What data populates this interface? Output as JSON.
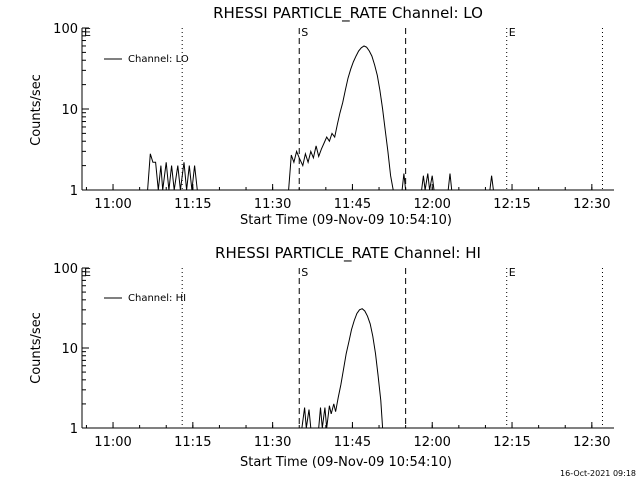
{
  "footer": {
    "timestamp": "16-Oct-2021 09:18"
  },
  "chart_data": [
    {
      "type": "line",
      "title": "RHESSI PARTICLE_RATE Channel: LO",
      "xlabel": "Start Time (09-Nov-09 10:54:10)",
      "ylabel": "Counts/sec",
      "y_scale": "log",
      "xlim": [
        "10:54:10",
        "12:34:10"
      ],
      "ylim": [
        1,
        100
      ],
      "x_ticks": [
        "11:00",
        "11:15",
        "11:30",
        "11:45",
        "12:00",
        "12:15",
        "12:30"
      ],
      "y_ticks": [
        "1",
        "10",
        "100"
      ],
      "legend": {
        "label": "Channel: LO",
        "placement": "top-left"
      },
      "markers": [
        {
          "time": "10:54:10",
          "label": "E",
          "style": "dotted"
        },
        {
          "time": "11:13:00",
          "label": "",
          "style": "dotted"
        },
        {
          "time": "11:35:00",
          "label": "S",
          "style": "dashed"
        },
        {
          "time": "11:55:00",
          "label": "",
          "style": "dashed"
        },
        {
          "time": "12:14:00",
          "label": "E",
          "style": "dotted"
        },
        {
          "time": "12:32:00",
          "label": "",
          "style": "dotted"
        }
      ],
      "series": [
        {
          "points": [
            [
              "11:06:30",
              1.0
            ],
            [
              "11:07:00",
              2.8
            ],
            [
              "11:07:30",
              2.2
            ],
            [
              "11:08:00",
              2.2
            ],
            [
              "11:08:30",
              1.0
            ],
            [
              "11:09:00",
              2.0
            ],
            [
              "11:09:20",
              1.0
            ],
            [
              "11:10:00",
              2.2
            ],
            [
              "11:10:30",
              1.0
            ],
            [
              "11:11:00",
              2.0
            ],
            [
              "11:11:30",
              1.0
            ],
            [
              "11:12:10",
              2.0
            ],
            [
              "11:12:40",
              1.0
            ],
            [
              "11:13:20",
              2.2
            ],
            [
              "11:13:50",
              1.0
            ],
            [
              "11:14:20",
              2.0
            ],
            [
              "11:14:50",
              1.0
            ],
            [
              "11:15:20",
              2.0
            ],
            [
              "11:15:50",
              1.0
            ],
            [
              "11:33:00",
              1.0
            ],
            [
              "11:33:30",
              2.7
            ],
            [
              "11:34:00",
              2.2
            ],
            [
              "11:34:30",
              3.0
            ],
            [
              "11:35:00",
              2.5
            ],
            [
              "11:35:40",
              2.0
            ],
            [
              "11:36:10",
              2.8
            ],
            [
              "11:36:40",
              2.2
            ],
            [
              "11:37:10",
              3.0
            ],
            [
              "11:37:40",
              2.5
            ],
            [
              "11:38:10",
              3.5
            ],
            [
              "11:38:40",
              2.6
            ],
            [
              "11:39:10",
              3.2
            ],
            [
              "11:39:40",
              3.8
            ],
            [
              "11:40:10",
              4.5
            ],
            [
              "11:40:40",
              4.0
            ],
            [
              "11:41:10",
              5.0
            ],
            [
              "11:41:40",
              4.5
            ],
            [
              "11:42:10",
              6.5
            ],
            [
              "11:42:40",
              9.0
            ],
            [
              "11:43:10",
              12.0
            ],
            [
              "11:43:40",
              17.0
            ],
            [
              "11:44:10",
              24.0
            ],
            [
              "11:44:40",
              31.0
            ],
            [
              "11:45:10",
              38.0
            ],
            [
              "11:45:40",
              45.0
            ],
            [
              "11:46:10",
              52.0
            ],
            [
              "11:46:40",
              57.0
            ],
            [
              "11:47:10",
              60.0
            ],
            [
              "11:47:40",
              58.0
            ],
            [
              "11:48:10",
              52.0
            ],
            [
              "11:48:40",
              45.0
            ],
            [
              "11:49:10",
              35.0
            ],
            [
              "11:49:40",
              26.0
            ],
            [
              "11:50:10",
              17.0
            ],
            [
              "11:50:40",
              10.0
            ],
            [
              "11:51:10",
              5.5
            ],
            [
              "11:51:40",
              3.0
            ],
            [
              "11:52:10",
              1.5
            ],
            [
              "11:52:40",
              1.0
            ],
            [
              "11:54:20",
              1.0
            ],
            [
              "11:54:40",
              1.6
            ],
            [
              "11:55:00",
              1.0
            ],
            [
              "11:58:00",
              1.0
            ],
            [
              "11:58:20",
              1.5
            ],
            [
              "11:58:40",
              1.0
            ],
            [
              "11:59:10",
              1.6
            ],
            [
              "11:59:30",
              1.0
            ],
            [
              "12:00:00",
              1.5
            ],
            [
              "12:00:20",
              1.0
            ],
            [
              "12:03:00",
              1.0
            ],
            [
              "12:03:20",
              1.6
            ],
            [
              "12:03:40",
              1.0
            ],
            [
              "12:10:50",
              1.0
            ],
            [
              "12:11:10",
              1.5
            ],
            [
              "12:11:30",
              1.0
            ]
          ]
        }
      ]
    },
    {
      "type": "line",
      "title": "RHESSI PARTICLE_RATE Channel: HI",
      "xlabel": "Start Time (09-Nov-09 10:54:10)",
      "ylabel": "Counts/sec",
      "y_scale": "log",
      "xlim": [
        "10:54:10",
        "12:34:10"
      ],
      "ylim": [
        1,
        100
      ],
      "x_ticks": [
        "11:00",
        "11:15",
        "11:30",
        "11:45",
        "12:00",
        "12:15",
        "12:30"
      ],
      "y_ticks": [
        "1",
        "10",
        "100"
      ],
      "legend": {
        "label": "Channel: HI",
        "placement": "top-left"
      },
      "markers": [
        {
          "time": "10:54:10",
          "label": "E",
          "style": "dotted"
        },
        {
          "time": "11:13:00",
          "label": "",
          "style": "dotted"
        },
        {
          "time": "11:35:00",
          "label": "S",
          "style": "dashed"
        },
        {
          "time": "11:55:00",
          "label": "",
          "style": "dashed"
        },
        {
          "time": "12:14:00",
          "label": "E",
          "style": "dotted"
        },
        {
          "time": "12:32:00",
          "label": "",
          "style": "dotted"
        }
      ],
      "series": [
        {
          "points": [
            [
              "11:35:30",
              1.0
            ],
            [
              "11:36:00",
              1.8
            ],
            [
              "11:36:20",
              1.0
            ],
            [
              "11:36:50",
              1.7
            ],
            [
              "11:37:10",
              1.0
            ],
            [
              "11:38:40",
              1.0
            ],
            [
              "11:39:00",
              1.8
            ],
            [
              "11:39:20",
              1.0
            ],
            [
              "11:39:50",
              1.8
            ],
            [
              "11:40:10",
              1.0
            ],
            [
              "11:40:40",
              1.9
            ],
            [
              "11:41:00",
              1.5
            ],
            [
              "11:41:30",
              2.0
            ],
            [
              "11:41:50",
              1.6
            ],
            [
              "11:42:20",
              2.4
            ],
            [
              "11:42:50",
              3.5
            ],
            [
              "11:43:20",
              5.5
            ],
            [
              "11:43:50",
              8.5
            ],
            [
              "11:44:20",
              12.0
            ],
            [
              "11:44:50",
              17.0
            ],
            [
              "11:45:20",
              22.0
            ],
            [
              "11:45:50",
              27.0
            ],
            [
              "11:46:20",
              30.0
            ],
            [
              "11:46:50",
              31.0
            ],
            [
              "11:47:20",
              29.0
            ],
            [
              "11:47:50",
              25.0
            ],
            [
              "11:48:20",
              20.0
            ],
            [
              "11:48:50",
              14.0
            ],
            [
              "11:49:20",
              8.5
            ],
            [
              "11:49:50",
              4.5
            ],
            [
              "11:50:20",
              2.2
            ],
            [
              "11:50:40",
              1.0
            ]
          ]
        }
      ]
    }
  ]
}
